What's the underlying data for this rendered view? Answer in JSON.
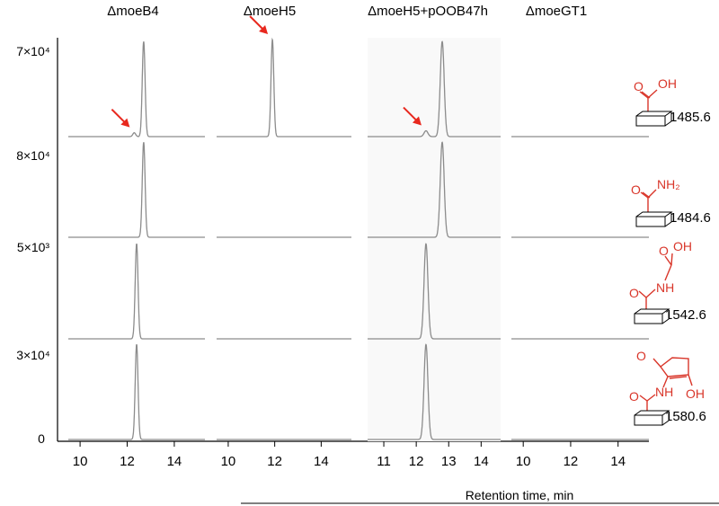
{
  "chart_data": {
    "type": "line",
    "xlabel": "Retention time, min",
    "columns": [
      {
        "title": "ΔmoeB4",
        "xlim": [
          9.5,
          15.3
        ],
        "ticks": [
          "10",
          "12",
          "14"
        ]
      },
      {
        "title": "ΔmoeH5",
        "xlim": [
          9.5,
          15.3
        ],
        "ticks": [
          "10",
          "12",
          "14"
        ]
      },
      {
        "title": "ΔmoeH5+pOOB47h",
        "xlim": [
          10.5,
          14.6
        ],
        "ticks": [
          "11",
          "12",
          "13",
          "14"
        ]
      },
      {
        "title": "ΔmoeGT1",
        "xlim": [
          9.5,
          15.3
        ],
        "ticks": [
          "10",
          "12",
          "14"
        ]
      }
    ],
    "rows": [
      {
        "ymax_label": "7×10⁴",
        "mass_label": "1485.6"
      },
      {
        "ymax_label": "8×10⁴",
        "mass_label": "1484.6"
      },
      {
        "ymax_label": "5×10³",
        "mass_label": "1542.6"
      },
      {
        "ymax_label": "3×10⁴",
        "mass_label": "1580.6"
      }
    ],
    "ymin_label": "0",
    "peaks": [
      {
        "row": 0,
        "col": 0,
        "rt": 12.7,
        "height": 0.98
      },
      {
        "row": 0,
        "col": 0,
        "rt": 12.3,
        "height": 0.04
      },
      {
        "row": 0,
        "col": 1,
        "rt": 11.9,
        "height": 1.0
      },
      {
        "row": 0,
        "col": 2,
        "rt": 12.8,
        "height": 0.98
      },
      {
        "row": 0,
        "col": 2,
        "rt": 12.3,
        "height": 0.06
      },
      {
        "row": 1,
        "col": 0,
        "rt": 12.7,
        "height": 0.98
      },
      {
        "row": 1,
        "col": 2,
        "rt": 12.8,
        "height": 0.98
      },
      {
        "row": 2,
        "col": 0,
        "rt": 12.4,
        "height": 0.98
      },
      {
        "row": 2,
        "col": 2,
        "rt": 12.3,
        "height": 0.98
      },
      {
        "row": 3,
        "col": 0,
        "rt": 12.4,
        "height": 0.98
      },
      {
        "row": 3,
        "col": 2,
        "rt": 12.3,
        "height": 0.98
      }
    ],
    "arrows": [
      {
        "row": 0,
        "col": 0,
        "rt": 12.3
      },
      {
        "row": 0,
        "col": 1,
        "rt": 11.9
      },
      {
        "row": 0,
        "col": 2,
        "rt": 12.3
      }
    ],
    "structures": [
      {
        "labels": [
          "O",
          "OH"
        ]
      },
      {
        "labels": [
          "O",
          "NH₂"
        ]
      },
      {
        "labels": [
          "O",
          "OH",
          "O",
          "NH"
        ]
      },
      {
        "labels": [
          "O",
          "NH",
          "OH",
          "O"
        ]
      }
    ],
    "colors": {
      "trace": "#8c8c8c",
      "arrow": "#e8281e",
      "structure": "#d9362a",
      "axis": "#000000"
    }
  }
}
